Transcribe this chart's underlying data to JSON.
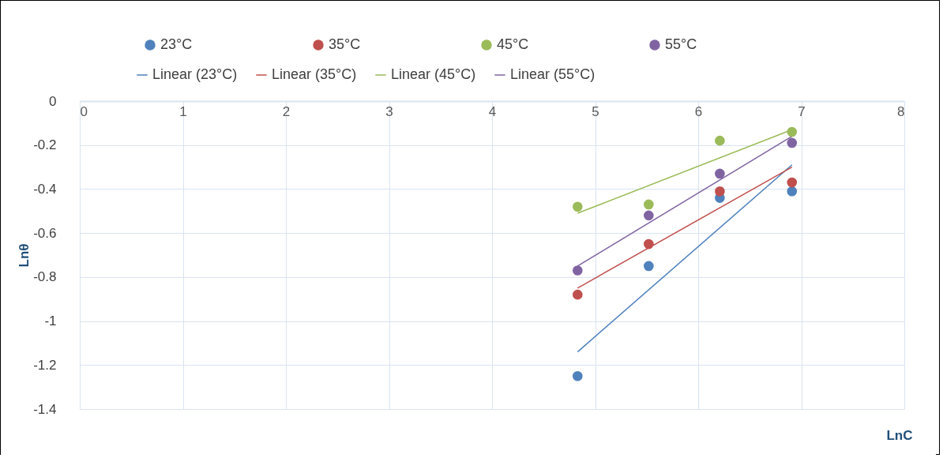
{
  "chart_data": {
    "type": "scatter",
    "xlabel": "LnC",
    "ylabel": "Lnθ",
    "xlim": [
      0,
      8
    ],
    "xticks": [
      0,
      1,
      2,
      3,
      4,
      5,
      6,
      7,
      8
    ],
    "ylim": [
      -1.4,
      0
    ],
    "yticks": [
      -1.4,
      -1.2,
      -1,
      -0.8,
      -0.6,
      -0.4,
      -0.2,
      0
    ],
    "grid": true,
    "legend": "top",
    "line_style": "solid",
    "series": [
      {
        "name": "23°C",
        "marker": "circle",
        "color": "#4f81bd",
        "x": [
          4.83,
          5.52,
          6.21,
          6.91
        ],
        "values": [
          -1.25,
          -0.75,
          -0.44,
          -0.41
        ]
      },
      {
        "name": "35°C",
        "marker": "circle",
        "color": "#c0504d",
        "x": [
          4.83,
          5.52,
          6.21,
          6.91
        ],
        "values": [
          -0.88,
          -0.65,
          -0.41,
          -0.37
        ]
      },
      {
        "name": "45°C",
        "marker": "circle",
        "color": "#9bbb59",
        "x": [
          4.83,
          5.52,
          6.21,
          6.91
        ],
        "values": [
          -0.48,
          -0.47,
          -0.18,
          -0.14
        ]
      },
      {
        "name": "55°C",
        "marker": "circle",
        "color": "#8064a2",
        "x": [
          4.83,
          5.52,
          6.21,
          6.91
        ],
        "values": [
          -0.77,
          -0.52,
          -0.33,
          -0.19
        ]
      },
      {
        "name": "Linear (23°C)",
        "type": "line",
        "marker": "none",
        "color": "#4f81bd",
        "x": [
          4.83,
          6.91
        ],
        "values": [
          -1.14,
          -0.29
        ]
      },
      {
        "name": "Linear (35°C)",
        "type": "line",
        "marker": "none",
        "color": "#c0504d",
        "x": [
          4.83,
          6.91
        ],
        "values": [
          -0.85,
          -0.3
        ]
      },
      {
        "name": "Linear (45°C)",
        "type": "line",
        "marker": "none",
        "color": "#9bbb59",
        "x": [
          4.83,
          6.91
        ],
        "values": [
          -0.51,
          -0.13
        ]
      },
      {
        "name": "Linear (55°C)",
        "type": "line",
        "marker": "none",
        "color": "#8064a2",
        "x": [
          4.83,
          6.91
        ],
        "values": [
          -0.75,
          -0.16
        ]
      }
    ]
  }
}
